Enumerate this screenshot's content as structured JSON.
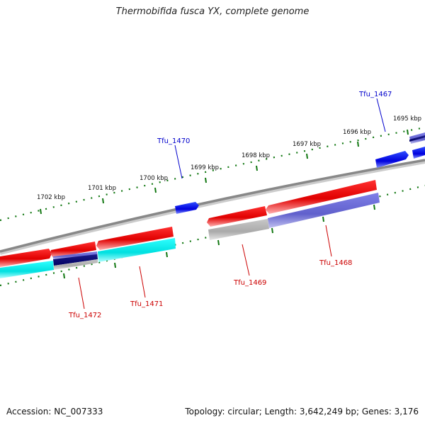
{
  "title": "Thermobifida fusca YX, complete genome",
  "accession": "Accession: NC_007333",
  "summary": "Topology: circular; Length: 3,642,249 bp; Genes: 3,176",
  "kbp_ticks": [
    {
      "label": "1702 kbp"
    },
    {
      "label": "1701 kbp"
    },
    {
      "label": "1700 kbp"
    },
    {
      "label": "1699 kbp"
    },
    {
      "label": "1698 kbp"
    },
    {
      "label": "1697 kbp"
    },
    {
      "label": "1696 kbp"
    },
    {
      "label": "1695 kbp"
    }
  ],
  "gene_labels": [
    {
      "name": "Tfu_1467",
      "strand": "plus"
    },
    {
      "name": "Tfu_1470",
      "strand": "plus"
    },
    {
      "name": "Tfu_1468",
      "strand": "minus"
    },
    {
      "name": "Tfu_1469",
      "strand": "minus"
    },
    {
      "name": "Tfu_1471",
      "strand": "minus"
    },
    {
      "name": "Tfu_1472",
      "strand": "minus"
    }
  ],
  "colors": {
    "plus_strand_gene": "#0000ee",
    "minus_strand_gene": "#ee0000",
    "label_plus": "#0000cc",
    "label_minus": "#cc0000",
    "tick": "#117711",
    "backbone": "#888888",
    "feature_cyan": "#00eeee",
    "feature_purple": "#7777dd",
    "feature_gray": "#bbbbbb"
  }
}
